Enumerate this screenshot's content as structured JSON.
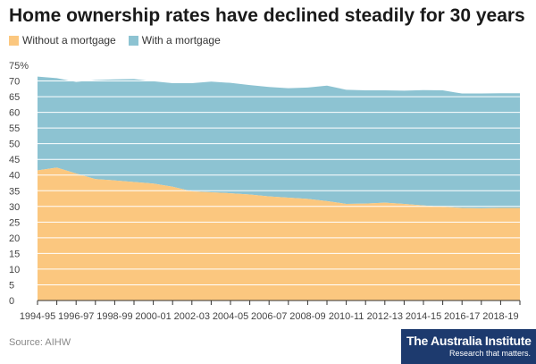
{
  "title": "Home ownership rates have declined steadily for 30 years",
  "colors": {
    "without": "#fbc77f",
    "with": "#8dc3d2",
    "grid": "#ffffff",
    "axis": "#333333",
    "logo_bg": "#1d3a6e"
  },
  "chart_data": {
    "type": "area",
    "stacked": true,
    "title": "Home ownership rates have declined steadily for 30 years",
    "xlabel": "",
    "ylabel": "",
    "ylim": [
      0,
      75
    ],
    "yticks": [
      "0",
      "5",
      "10",
      "15",
      "20",
      "25",
      "30",
      "35",
      "40",
      "45",
      "50",
      "55",
      "60",
      "65",
      "70",
      "75%"
    ],
    "grid": true,
    "legend_position": "top-left",
    "x": [
      "1994-95",
      "1995-96",
      "1996-97",
      "1997-98",
      "1998-99",
      "1999-00",
      "2000-01",
      "2001-02",
      "2002-03",
      "2003-04",
      "2004-05",
      "2005-06",
      "2006-07",
      "2007-08",
      "2008-09",
      "2009-10",
      "2010-11",
      "2011-12",
      "2012-13",
      "2013-14",
      "2014-15",
      "2015-16",
      "2016-17",
      "2017-18",
      "2018-19",
      "2019-20"
    ],
    "xtick_labels": [
      "1994-95",
      "1996-97",
      "1998-99",
      "2000-01",
      "2002-03",
      "2004-05",
      "2006-07",
      "2008-09",
      "2010-11",
      "2012-13",
      "2014-15",
      "2016-17",
      "2018-19"
    ],
    "series": [
      {
        "name": "Without a mortgage",
        "values": [
          41.5,
          42.4,
          40.5,
          38.7,
          38.3,
          37.8,
          37.3,
          36.3,
          34.8,
          34.5,
          34.2,
          33.8,
          33.2,
          32.8,
          32.4,
          31.7,
          30.8,
          30.9,
          31.2,
          30.8,
          30.3,
          29.9,
          29.5,
          29.4,
          29.5,
          29.5
        ]
      },
      {
        "name": "With a mortgage",
        "values": [
          29.9,
          28.5,
          29.2,
          31.6,
          32.2,
          32.8,
          32.6,
          33.0,
          34.5,
          35.3,
          35.2,
          34.9,
          34.9,
          34.9,
          35.5,
          36.8,
          36.4,
          36.1,
          35.8,
          36.1,
          36.8,
          37.1,
          36.5,
          36.6,
          36.6,
          36.6
        ]
      }
    ]
  },
  "source": "Source: AIHW",
  "logo": {
    "name": "The Australia Institute",
    "tagline": "Research that matters."
  }
}
